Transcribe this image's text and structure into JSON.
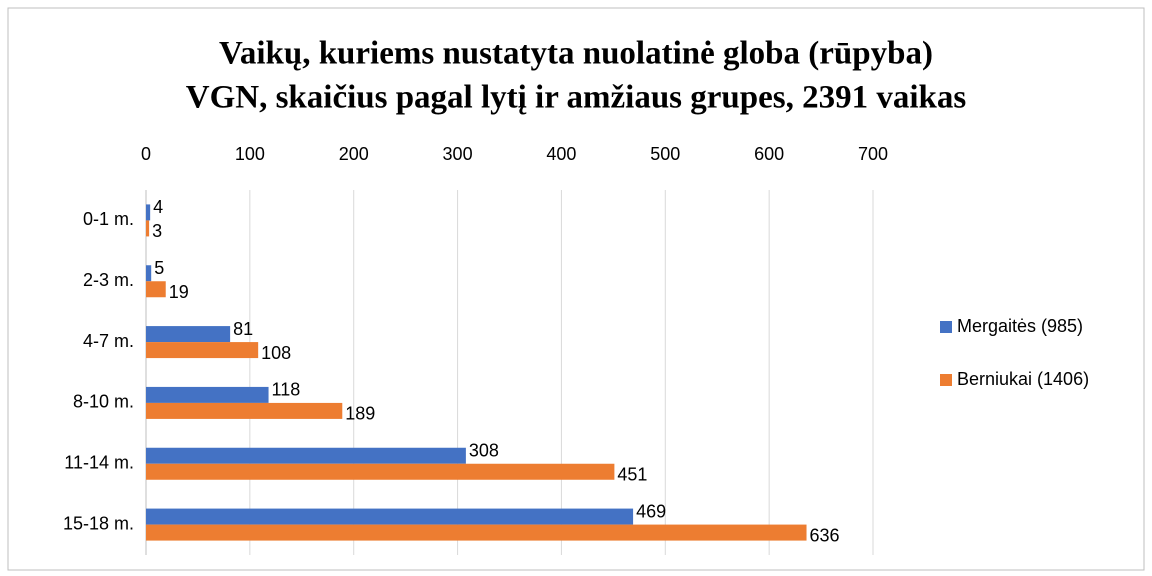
{
  "chart_data": {
    "type": "barh",
    "title": [
      "Vaikų, kuriems nustatyta nuolatinė globa (rūpyba)",
      "VGN, skaičius pagal lytį ir amžiaus grupes, 2391 vaikas"
    ],
    "categories": [
      "0-1 m.",
      "2-3 m.",
      "4-7 m.",
      "8-10 m.",
      "11-14 m.",
      "15-18 m."
    ],
    "series": [
      {
        "name": "Mergaitės (985)",
        "color": "#4472c4",
        "values": [
          4,
          5,
          81,
          118,
          308,
          469
        ]
      },
      {
        "name": "Berniukai (1406)",
        "color": "#ed7d31",
        "values": [
          3,
          19,
          108,
          189,
          451,
          636
        ]
      }
    ],
    "xlim": [
      0,
      700
    ],
    "xticks": [
      0,
      100,
      200,
      300,
      400,
      500,
      600,
      700
    ],
    "grid": true,
    "legend": "right"
  }
}
